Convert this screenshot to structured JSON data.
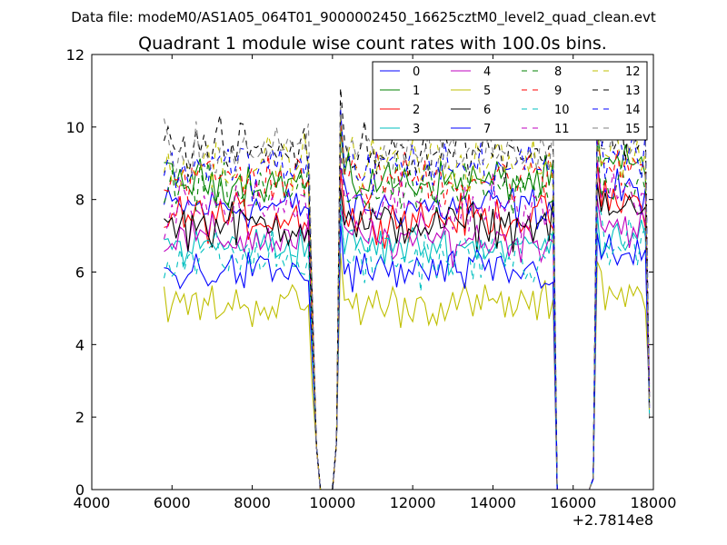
{
  "suptitle": "Data file: modeM0/AS1A05_064T01_9000002450_16625cztM0_level2_quad_clean.evt",
  "chart_data": {
    "type": "line",
    "title": "Quadrant 1 module wise count rates with 100.0s bins.",
    "xlabel": "",
    "ylabel": "",
    "x_offset_label": "+2.7814e8",
    "xlim": [
      4000,
      18000
    ],
    "ylim": [
      0,
      12
    ],
    "xticks": [
      4000,
      6000,
      8000,
      10000,
      12000,
      14000,
      16000,
      18000
    ],
    "yticks": [
      0,
      2,
      4,
      6,
      8,
      10,
      12
    ],
    "grid": false,
    "legend_position": "top-right",
    "segments": [
      {
        "start": 5800,
        "end": 9400
      },
      {
        "start": 10200,
        "end": 15500
      },
      {
        "start": 16600,
        "end": 17800
      }
    ],
    "gaps": [
      {
        "drop_start": 9500,
        "zero_from": 9700,
        "zero_to": 10000,
        "rise_end": 10200
      },
      {
        "drop_start": 15500,
        "zero_from": 15600,
        "zero_to": 16400,
        "rise_end": 16600
      }
    ],
    "final_point": {
      "x": 17900,
      "y": 2.2
    },
    "series": [
      {
        "name": "0",
        "color": "#0000ff",
        "dashed": false,
        "base": 7.8,
        "end_peak": 9.0
      },
      {
        "name": "1",
        "color": "#008000",
        "dashed": false,
        "base": 8.5,
        "end_peak": 9.8
      },
      {
        "name": "2",
        "color": "#ff0000",
        "dashed": false,
        "base": 7.5,
        "end_peak": 9.0
      },
      {
        "name": "3",
        "color": "#00bfbf",
        "dashed": false,
        "base": 6.7,
        "end_peak": 7.5
      },
      {
        "name": "4",
        "color": "#bf00bf",
        "dashed": false,
        "base": 6.9,
        "end_peak": 8.2
      },
      {
        "name": "5",
        "color": "#bfbf00",
        "dashed": false,
        "base": 5.1,
        "end_peak": 6.2
      },
      {
        "name": "6",
        "color": "#000000",
        "dashed": false,
        "base": 7.3,
        "end_peak": 8.5
      },
      {
        "name": "7",
        "color": "#0000ff",
        "dashed": false,
        "base": 6.0,
        "end_peak": 7.0
      },
      {
        "name": "8",
        "color": "#008000",
        "dashed": true,
        "base": 8.2,
        "end_peak": 9.5
      },
      {
        "name": "9",
        "color": "#ff0000",
        "dashed": true,
        "base": 8.6,
        "end_peak": 9.6
      },
      {
        "name": "10",
        "color": "#00bfbf",
        "dashed": true,
        "base": 6.4,
        "end_peak": 7.6
      },
      {
        "name": "11",
        "color": "#bf00bf",
        "dashed": true,
        "base": 7.8,
        "end_peak": 9.2
      },
      {
        "name": "12",
        "color": "#bfbf00",
        "dashed": true,
        "base": 9.0,
        "end_peak": 10.2
      },
      {
        "name": "13",
        "color": "#000000",
        "dashed": true,
        "base": 9.4,
        "end_peak": 10.5
      },
      {
        "name": "14",
        "color": "#0000ff",
        "dashed": true,
        "base": 8.9,
        "end_peak": 10.0
      },
      {
        "name": "15",
        "color": "#808080",
        "dashed": true,
        "base": 9.3,
        "end_peak": 10.6
      }
    ]
  }
}
